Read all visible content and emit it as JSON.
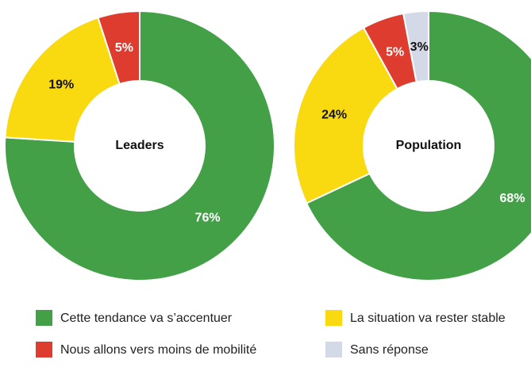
{
  "chart_data": [
    {
      "type": "pie",
      "title": "Leaders",
      "values": [
        76,
        19,
        5
      ],
      "value_labels": [
        "76%",
        "19%",
        "5%"
      ],
      "colors": [
        "#43a047",
        "#f9d90f",
        "#de3c2f"
      ],
      "label_colors": [
        "#ffffff",
        "#111111",
        "#ffffff"
      ]
    },
    {
      "type": "pie",
      "title": "Population",
      "values": [
        68,
        24,
        5,
        3
      ],
      "value_labels": [
        "68%",
        "24%",
        "5%",
        "3%"
      ],
      "colors": [
        "#43a047",
        "#f9d90f",
        "#de3c2f",
        "#d4d9e8"
      ],
      "label_colors": [
        "#ffffff",
        "#111111",
        "#ffffff",
        "#111111"
      ]
    }
  ],
  "legend": [
    {
      "name": "Cette tendance va s’accentuer",
      "color": "#43a047"
    },
    {
      "name": "La situation va rester stable",
      "color": "#f9d90f"
    },
    {
      "name": "Nous allons vers moins de mobilité",
      "color": "#de3c2f"
    },
    {
      "name": "Sans réponse",
      "color": "#d4d9e8"
    }
  ]
}
